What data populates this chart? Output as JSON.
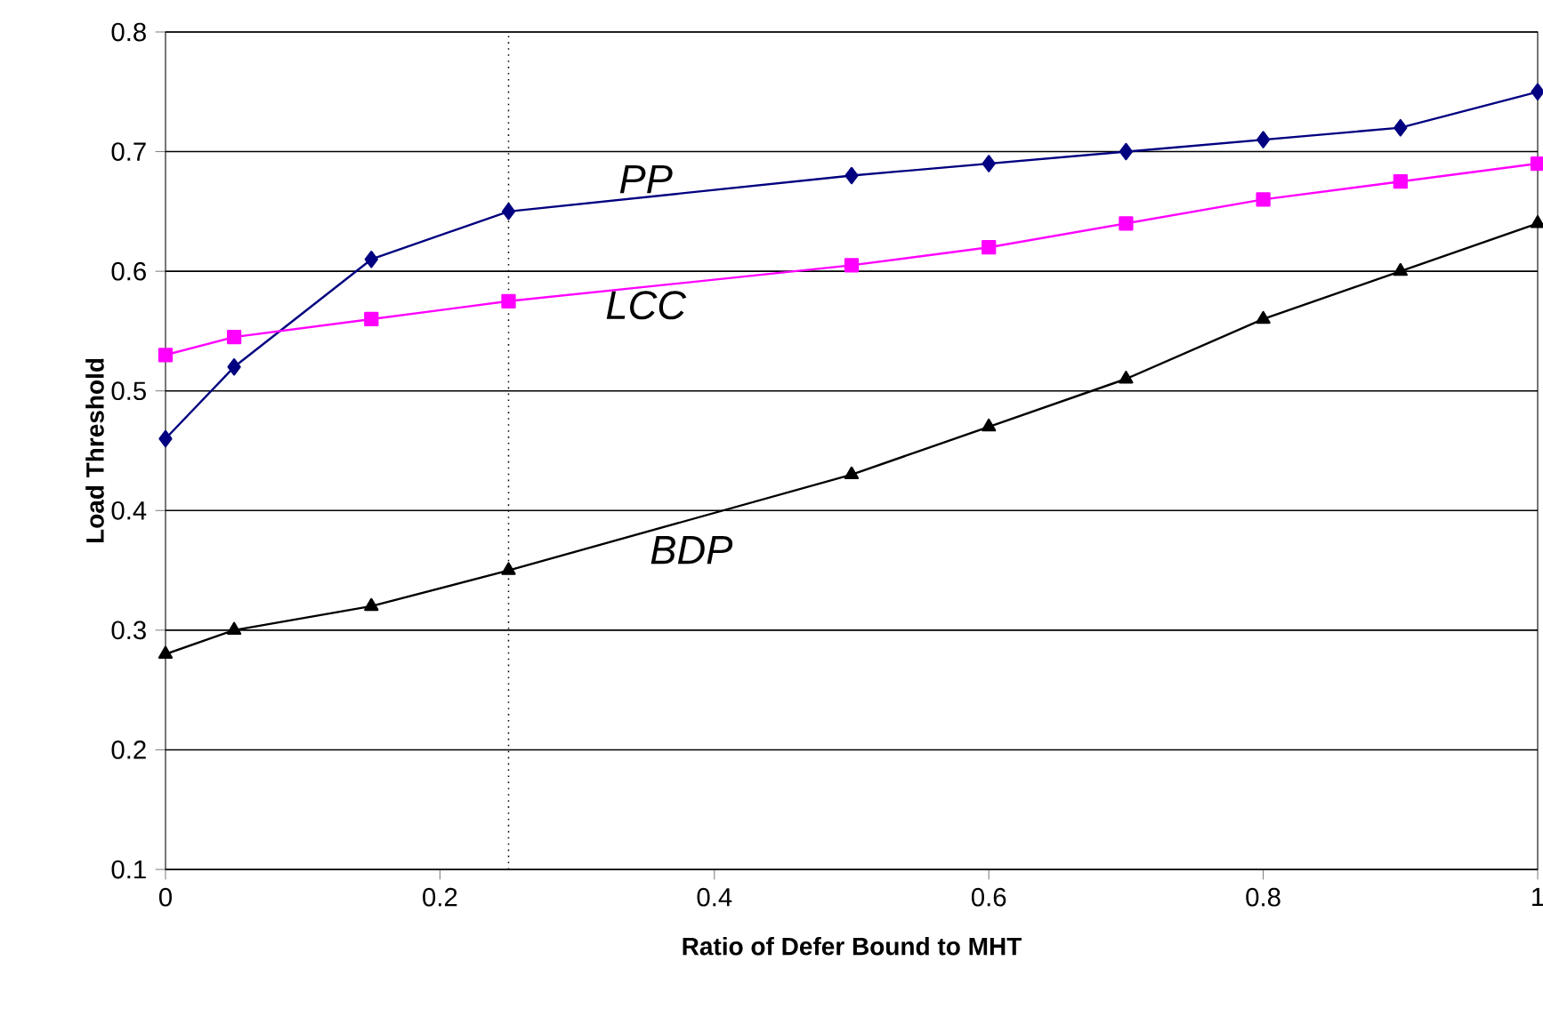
{
  "chart_data": {
    "type": "line",
    "xlabel": "Ratio of Defer Bound to MHT",
    "ylabel": "Load Threshold",
    "x": [
      0,
      0.05,
      0.15,
      0.25,
      0.5,
      0.6,
      0.7,
      0.8,
      0.9,
      1
    ],
    "series": [
      {
        "name": "PP",
        "color": "#000080",
        "marker": "diamond",
        "values": [
          0.46,
          0.52,
          0.61,
          0.65,
          0.68,
          0.69,
          0.7,
          0.71,
          0.72,
          0.75
        ]
      },
      {
        "name": "LCC",
        "color": "#ff00ff",
        "marker": "square",
        "values": [
          0.53,
          0.545,
          0.56,
          0.575,
          0.605,
          0.62,
          0.64,
          0.66,
          0.675,
          0.69
        ]
      },
      {
        "name": "BDP",
        "color": "#000000",
        "marker": "triangle",
        "values": [
          0.28,
          0.3,
          0.32,
          0.35,
          0.43,
          0.47,
          0.51,
          0.56,
          0.6,
          0.64
        ]
      }
    ],
    "xlim": [
      0,
      1
    ],
    "ylim": [
      0.1,
      0.8
    ],
    "xticks": [
      0,
      0.2,
      0.4,
      0.6,
      0.8,
      1
    ],
    "yticks": [
      0.1,
      0.2,
      0.3,
      0.4,
      0.5,
      0.6,
      0.7,
      0.8
    ],
    "grid": "y",
    "line_style": "solid",
    "ref_lines": [
      {
        "axis": "x",
        "value": 0.25,
        "line_style": "dotted",
        "color": "#000000"
      }
    ]
  }
}
